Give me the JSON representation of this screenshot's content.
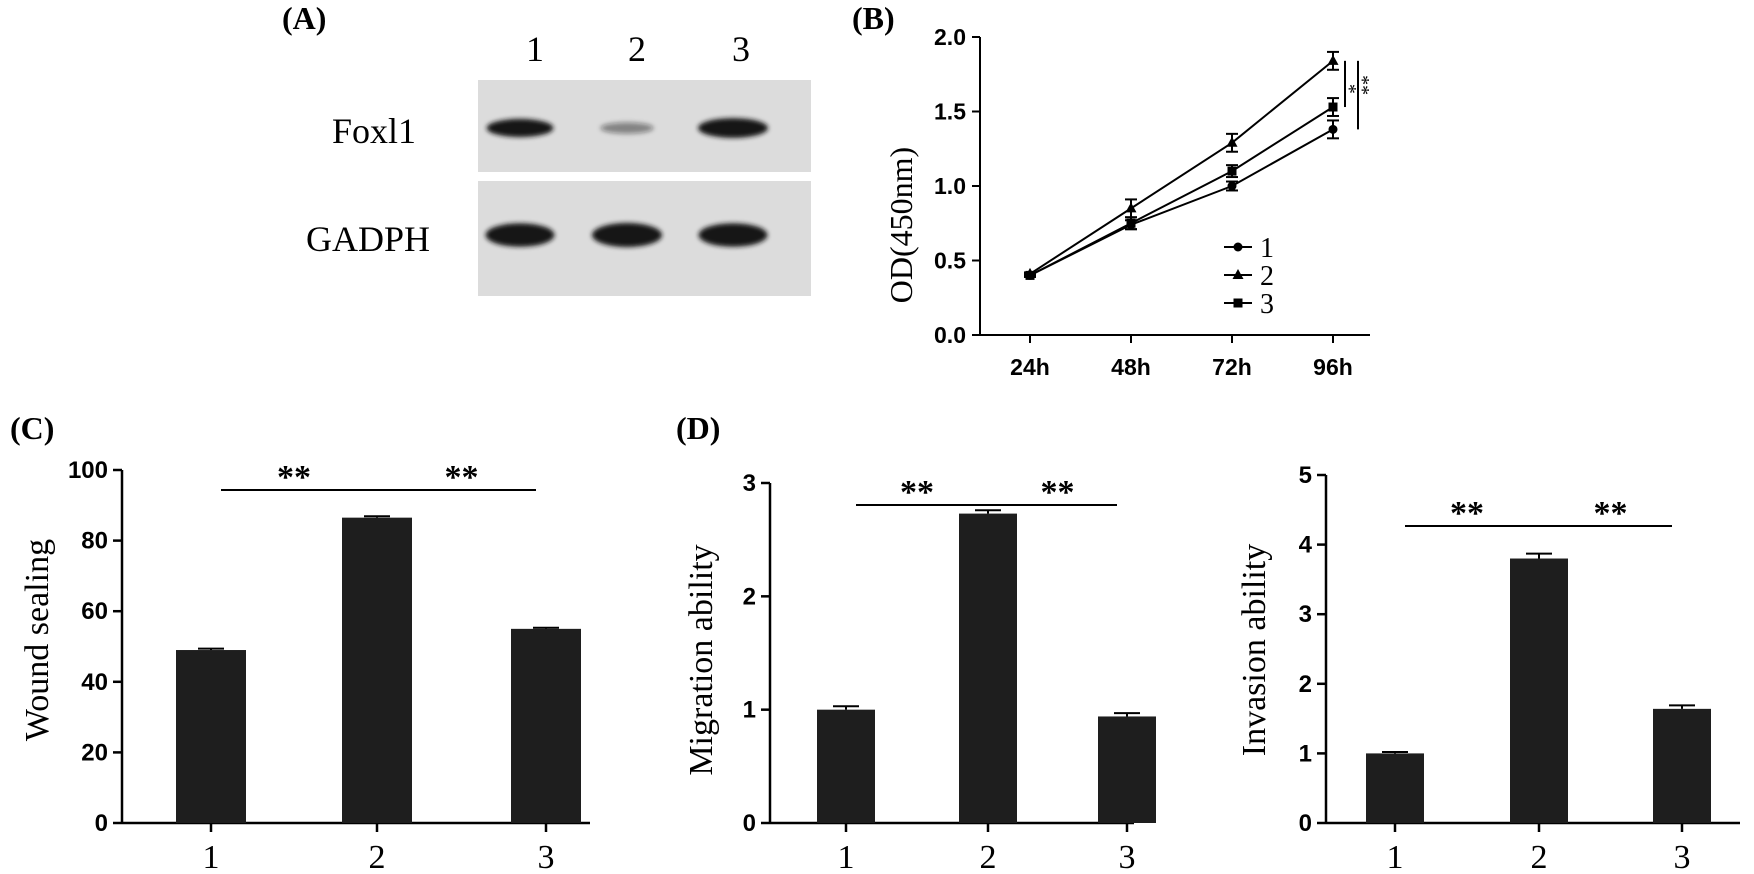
{
  "panels": {
    "a": "(A)",
    "b": "(B)",
    "c": "(C)",
    "d": "(D)"
  },
  "blot": {
    "lanes": [
      "1",
      "2",
      "3"
    ],
    "rows": [
      "Foxl1",
      "GADPH"
    ],
    "band_intensity": {
      "Foxl1": [
        0.85,
        0.2,
        1.0
      ],
      "GADPH": [
        0.95,
        1.0,
        0.95
      ]
    }
  },
  "colors": {
    "ink": "#000000",
    "bar": "#1e1e1e",
    "blot_bg": "#dcdcdc",
    "band": "#141414"
  },
  "chart_data": [
    {
      "id": "B",
      "type": "line",
      "title": "",
      "xlabel": "",
      "ylabel": "OD(450nm)",
      "categories": [
        "24h",
        "48h",
        "72h",
        "96h"
      ],
      "ylim": [
        0,
        2.0
      ],
      "yticks": [
        "0.0",
        "0.5",
        "1.0",
        "1.5",
        "2.0"
      ],
      "series": [
        {
          "name": "1",
          "marker": "circle",
          "values": [
            0.4,
            0.74,
            1.0,
            1.38
          ],
          "errors": [
            0.01,
            0.03,
            0.03,
            0.06
          ]
        },
        {
          "name": "2",
          "marker": "triangle",
          "values": [
            0.41,
            0.85,
            1.29,
            1.84
          ],
          "errors": [
            0.01,
            0.06,
            0.06,
            0.06
          ]
        },
        {
          "name": "3",
          "marker": "square",
          "values": [
            0.4,
            0.75,
            1.1,
            1.53
          ],
          "errors": [
            0.01,
            0.04,
            0.04,
            0.06
          ]
        }
      ],
      "significance": [
        "*",
        "**"
      ],
      "legend": "bottom-right"
    },
    {
      "id": "C",
      "type": "bar",
      "categories": [
        "1",
        "2",
        "3"
      ],
      "values": [
        49,
        86.5,
        55
      ],
      "errors": [
        0.4,
        0.4,
        0.3
      ],
      "ylabel": "Wound sealing",
      "ylim": [
        0,
        100
      ],
      "yticks": [
        "0",
        "20",
        "40",
        "60",
        "80",
        "100"
      ],
      "significance": [
        "**",
        "**"
      ]
    },
    {
      "id": "D-migration",
      "type": "bar",
      "categories": [
        "1",
        "2",
        "3"
      ],
      "values": [
        1.0,
        2.73,
        0.94
      ],
      "errors": [
        0.03,
        0.03,
        0.03
      ],
      "ylabel": "Migration ability",
      "ylim": [
        0,
        3
      ],
      "yticks": [
        "0",
        "1",
        "2",
        "3"
      ],
      "significance": [
        "**",
        "**"
      ]
    },
    {
      "id": "D-invasion",
      "type": "bar",
      "categories": [
        "1",
        "2",
        "3"
      ],
      "values": [
        1.0,
        3.8,
        1.64
      ],
      "errors": [
        0.02,
        0.07,
        0.05
      ],
      "ylabel": "Invasion ability",
      "ylim": [
        0,
        5
      ],
      "yticks": [
        "0",
        "1",
        "2",
        "3",
        "4",
        "5"
      ],
      "significance": [
        "**",
        "**"
      ]
    }
  ]
}
